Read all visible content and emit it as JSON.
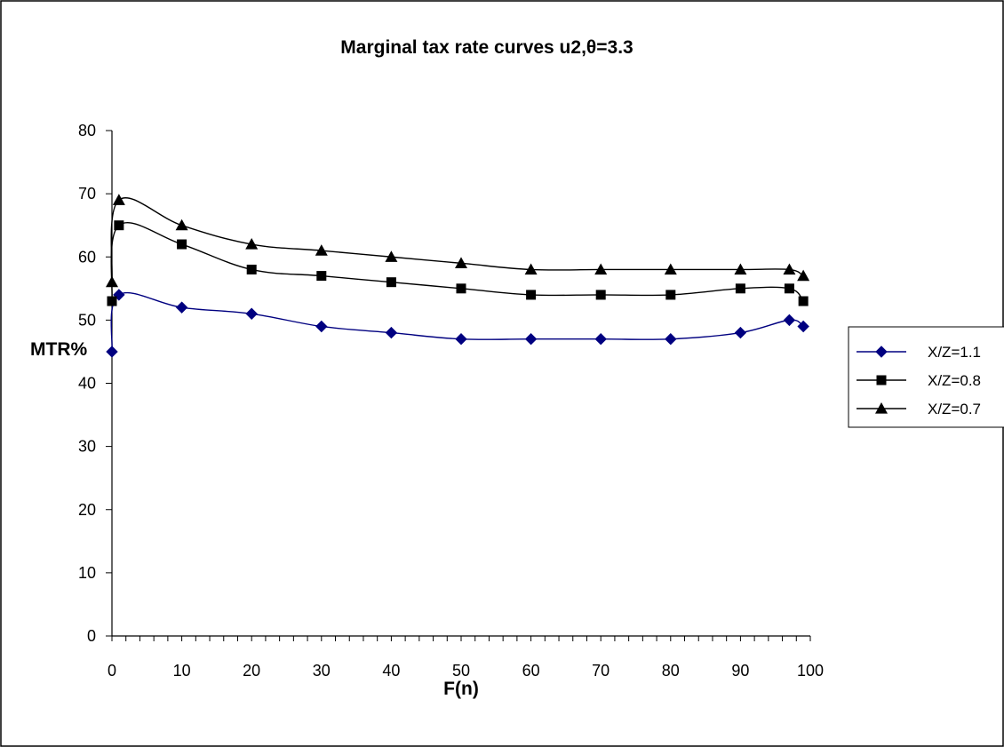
{
  "chart_data": {
    "type": "line",
    "title": "Marginal tax rate curves u2,θ=3.3",
    "xlabel": "F(n)",
    "ylabel": "MTR%",
    "xlim": [
      0,
      100
    ],
    "ylim": [
      0,
      80
    ],
    "x_ticks": [
      "0",
      "10",
      "20",
      "30",
      "40",
      "50",
      "60",
      "70",
      "80",
      "90",
      "100"
    ],
    "y_ticks": [
      "0",
      "10",
      "20",
      "30",
      "40",
      "50",
      "60",
      "70",
      "80"
    ],
    "grid": false,
    "legend_position": "right",
    "series": [
      {
        "name": "X/Z=1.1",
        "marker": "diamond",
        "color": "#000080",
        "x": [
          0,
          1,
          10,
          20,
          30,
          40,
          50,
          60,
          70,
          80,
          90,
          97,
          99
        ],
        "y": [
          45,
          54,
          52,
          51,
          49,
          48,
          47,
          47,
          47,
          47,
          48,
          50,
          49
        ]
      },
      {
        "name": "X/Z=0.8",
        "marker": "square",
        "color": "#000000",
        "x": [
          0,
          1,
          10,
          20,
          30,
          40,
          50,
          60,
          70,
          80,
          90,
          97,
          99
        ],
        "y": [
          53,
          65,
          62,
          58,
          57,
          56,
          55,
          54,
          54,
          54,
          55,
          55,
          53
        ]
      },
      {
        "name": "X/Z=0.7",
        "marker": "triangle",
        "color": "#000000",
        "x": [
          0,
          1,
          10,
          20,
          30,
          40,
          50,
          60,
          70,
          80,
          90,
          97,
          99
        ],
        "y": [
          56,
          69,
          65,
          62,
          61,
          60,
          59,
          58,
          58,
          58,
          58,
          58,
          57
        ]
      }
    ]
  }
}
